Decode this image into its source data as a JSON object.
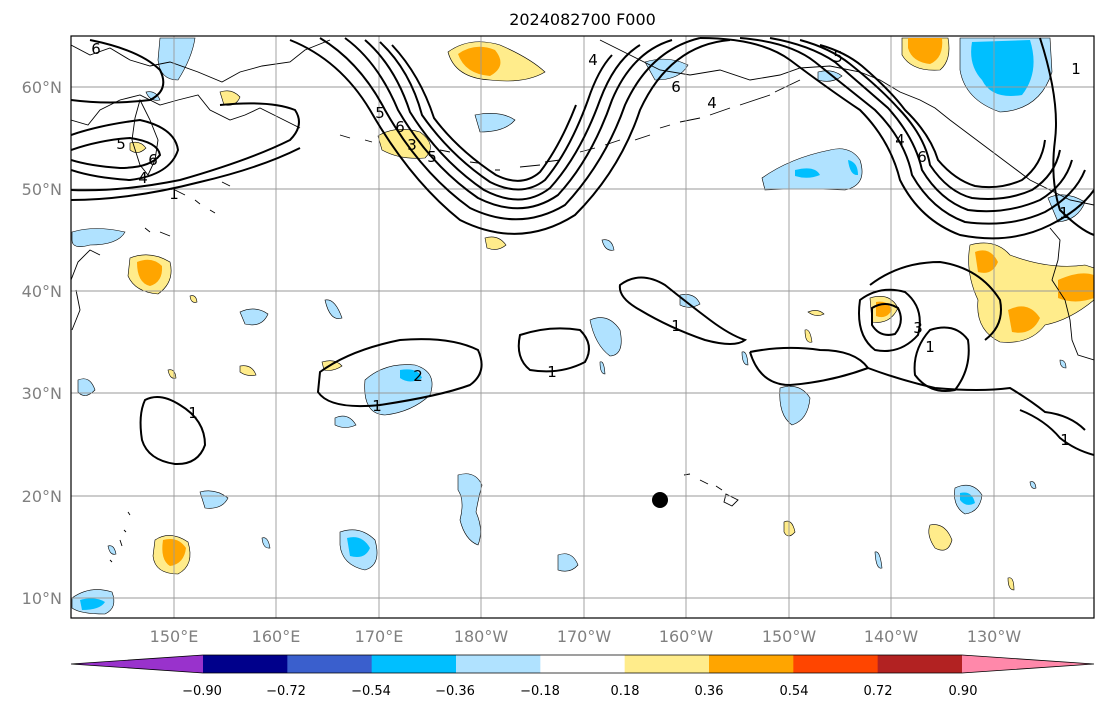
{
  "title": "2024082700 F000",
  "lon_ticks": [
    "150°E",
    "160°E",
    "170°E",
    "180°W",
    "170°W",
    "160°W",
    "150°W",
    "140°W",
    "130°W"
  ],
  "lat_ticks": [
    "60°N",
    "50°N",
    "40°N",
    "30°N",
    "20°N",
    "10°N"
  ],
  "colorbar": {
    "colors": [
      "#9932cc",
      "#00008b",
      "#3a5fcd",
      "#00bfff",
      "#b0e2ff",
      "#ffffff",
      "#ffec8b",
      "#ffa500",
      "#ff4500",
      "#b22222",
      "#ff88aa"
    ],
    "tick_labels": [
      "−0.90",
      "−0.72",
      "−0.54",
      "−0.36",
      "−0.18",
      "0.18",
      "0.36",
      "0.54",
      "0.72",
      "0.90"
    ]
  },
  "contour_labels": [
    "6",
    "5",
    "6",
    "4",
    "1",
    "4",
    "5",
    "6",
    "3",
    "5",
    "6",
    "4",
    "1",
    "5",
    "4",
    "6",
    "1",
    "1",
    "2",
    "1",
    "1",
    "1",
    "3",
    "1",
    "1"
  ],
  "colors": {
    "orange": "#ffa500",
    "yellow": "#ffec8b",
    "light_blue": "#b0e2ff",
    "deep_sky_blue": "#00bfff"
  },
  "marker": "black-dot"
}
